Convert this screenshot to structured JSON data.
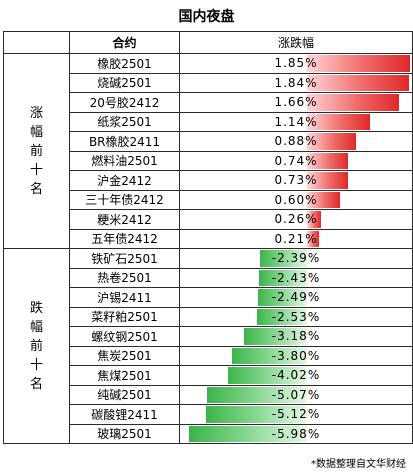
{
  "title": "国内夜盘",
  "header": {
    "name_col": "合约",
    "change_col": "涨跌幅"
  },
  "groups": {
    "gainers": {
      "label": "涨幅前十名",
      "rows": [
        {
          "name": "橡胶2501",
          "change": "1.85%",
          "value": 1.85
        },
        {
          "name": "烧碱2501",
          "change": "1.84%",
          "value": 1.84
        },
        {
          "name": "20号胶2412",
          "change": "1.66%",
          "value": 1.66
        },
        {
          "name": "纸浆2501",
          "change": "1.14%",
          "value": 1.14
        },
        {
          "name": "BR橡胶2411",
          "change": "0.88%",
          "value": 0.88
        },
        {
          "name": "燃料油2501",
          "change": "0.74%",
          "value": 0.74
        },
        {
          "name": "沪金2412",
          "change": "0.73%",
          "value": 0.73
        },
        {
          "name": "三十年债2412",
          "change": "0.60%",
          "value": 0.6
        },
        {
          "name": "粳米2412",
          "change": "0.26%",
          "value": 0.26
        },
        {
          "name": "五年债2412",
          "change": "0.21%",
          "value": 0.21
        }
      ]
    },
    "losers": {
      "label": "跌幅前十名",
      "rows": [
        {
          "name": "铁矿石2501",
          "change": "-2.39%",
          "value": -2.39
        },
        {
          "name": "热卷2501",
          "change": "-2.43%",
          "value": -2.43
        },
        {
          "name": "沪锡2411",
          "change": "-2.49%",
          "value": -2.49
        },
        {
          "name": "菜籽粕2501",
          "change": "-2.53%",
          "value": -2.53
        },
        {
          "name": "螺纹钢2501",
          "change": "-3.18%",
          "value": -3.18
        },
        {
          "name": "焦炭2501",
          "change": "-3.80%",
          "value": -3.8
        },
        {
          "name": "焦煤2501",
          "change": "-4.02%",
          "value": -4.02
        },
        {
          "name": "纯碱2501",
          "change": "-5.07%",
          "value": -5.07
        },
        {
          "name": "碳酸锂2411",
          "change": "-5.12%",
          "value": -5.12
        },
        {
          "name": "玻璃2501",
          "change": "-5.98%",
          "value": -5.98
        }
      ]
    }
  },
  "colors": {
    "up": "#e02828",
    "down": "#3bb54a"
  },
  "source": "*数据整理自文华财经"
}
